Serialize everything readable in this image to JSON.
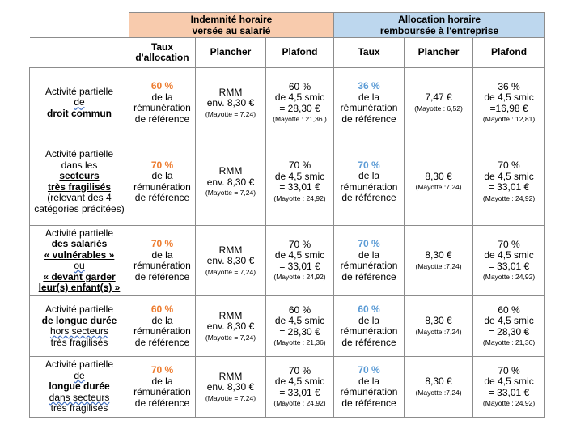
{
  "header": {
    "group_indemnite": [
      "Indemnité horaire",
      "versée au salarié"
    ],
    "group_allocation": [
      "Allocation horaire",
      "remboursée à l'entreprise"
    ],
    "col_taux_allocation": [
      "Taux",
      "d'allocation"
    ],
    "col_plancher_1": "Plancher",
    "col_plafond_1": "Plafond",
    "col_taux": "Taux",
    "col_plancher_2": "Plancher",
    "col_plafond_2": "Plafond"
  },
  "colors": {
    "orange_header": "#f8cbad",
    "blue_header": "#bdd7ee",
    "orange_pct": "#ed7d31",
    "blue_pct": "#5b9bd5"
  },
  "rows": [
    {
      "label": [
        "Activité partielle",
        "de",
        "droit commun"
      ],
      "taux_pct": "60 %",
      "taux_rest": [
        "de la",
        "rémunération",
        "de référence"
      ],
      "plancher": [
        "RMM",
        "env. 8,30 €"
      ],
      "plancher_note": "(Mayotte = 7,24)",
      "plafond": [
        "60 %",
        "de 4,5 smic",
        "= 28,30 €"
      ],
      "plafond_note": "(Mayotte : 21,36 )",
      "alloc_pct": "36 %",
      "alloc_rest": [
        "de la",
        "rémunération",
        "de référence"
      ],
      "alloc_plancher": "7,47 €",
      "alloc_plancher_note": "(Mayotte : 6,52)",
      "alloc_plafond": [
        "36 %",
        "de 4,5 smic",
        "=16,98 €"
      ],
      "alloc_plafond_note": "(Mayotte : 12,81)"
    },
    {
      "label": [
        "Activité partielle",
        "dans les",
        "secteurs",
        "très fragilisés",
        "(relevant des 4",
        "catégories précitées)"
      ],
      "taux_pct": "70 %",
      "taux_rest": [
        "de la",
        "rémunération",
        "de référence"
      ],
      "plancher": [
        "RMM",
        "env. 8,30 €"
      ],
      "plancher_note": "(Mayotte = 7,24)",
      "plafond": [
        "70 %",
        "de 4,5 smic",
        "= 33,01 €"
      ],
      "plafond_note": "(Mayotte : 24,92)",
      "alloc_pct": "70 %",
      "alloc_rest": [
        "de la",
        "rémunération",
        "de référence"
      ],
      "alloc_plancher": "8,30 €",
      "alloc_plancher_note": "(Mayotte :7,24)",
      "alloc_plafond": [
        "70 %",
        "de 4,5 smic",
        "= 33,01 €"
      ],
      "alloc_plafond_note": "(Mayotte : 24,92)"
    },
    {
      "label": [
        "Activité partielle",
        "des salariés",
        "« vulnérables »",
        "ou",
        "« devant garder",
        "leur(s) enfant(s) »"
      ],
      "taux_pct": "70 %",
      "taux_rest": [
        "de la",
        "rémunération",
        "de référence"
      ],
      "plancher": [
        "RMM",
        "env. 8,30 €"
      ],
      "plancher_note": "(Mayotte = 7,24)",
      "plafond": [
        "70 %",
        "de 4,5 smic",
        "= 33,01 €"
      ],
      "plafond_note": "(Mayotte : 24,92)",
      "alloc_pct": "70 %",
      "alloc_rest": [
        "de la",
        "rémunération",
        "de référence"
      ],
      "alloc_plancher": "8,30 €",
      "alloc_plancher_note": "(Mayotte :7,24)",
      "alloc_plafond": [
        "70 %",
        "de 4,5 smic",
        "= 33,01 €"
      ],
      "alloc_plafond_note": "(Mayotte : 24,92)"
    },
    {
      "label": [
        "Activité partielle",
        "de longue durée",
        "hors secteurs",
        "très fragilisés"
      ],
      "taux_pct": "60 %",
      "taux_rest": [
        "de la",
        "rémunération",
        "de référence"
      ],
      "plancher": [
        "RMM",
        "env. 8,30 €"
      ],
      "plancher_note": "(Mayotte = 7,24)",
      "plafond": [
        "60 %",
        "de 4,5 smic",
        "= 28,30 €"
      ],
      "plafond_note": "(Mayotte : 21,36)",
      "alloc_pct": "60 %",
      "alloc_rest": [
        "de la",
        "rémunération",
        "de référence"
      ],
      "alloc_plancher": "8,30 €",
      "alloc_plancher_note": "(Mayotte :7,24)",
      "alloc_plafond": [
        "60 %",
        "de 4,5 smic",
        "= 28,30 €"
      ],
      "alloc_plafond_note": "(Mayotte : 21,36)"
    },
    {
      "label": [
        "Activité partielle",
        "de",
        "longue durée",
        "dans secteurs",
        "très fragilisés"
      ],
      "taux_pct": "70 %",
      "taux_rest": [
        "de la",
        "rémunération",
        "de référence"
      ],
      "plancher": [
        "RMM",
        "env. 8,30 €"
      ],
      "plancher_note": "(Mayotte = 7,24)",
      "plafond": [
        "70 %",
        "de 4,5 smic",
        "= 33,01 €"
      ],
      "plafond_note": "(Mayotte : 24,92)",
      "alloc_pct": "70 %",
      "alloc_rest": [
        "de la",
        "rémunération",
        "de référence"
      ],
      "alloc_plancher": "8,30 €",
      "alloc_plancher_note": "(Mayotte :7,24)",
      "alloc_plafond": [
        "70 %",
        "de 4,5 smic",
        "= 33,01 €"
      ],
      "alloc_plafond_note": "(Mayotte : 24,92)"
    }
  ]
}
